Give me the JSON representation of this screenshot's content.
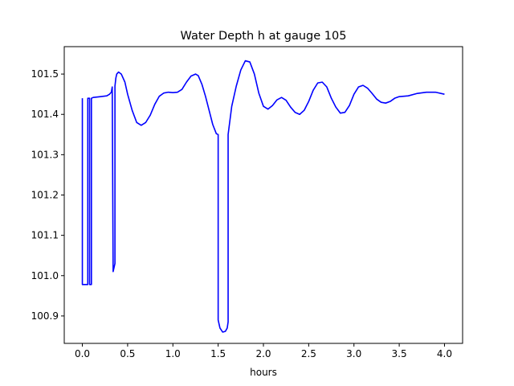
{
  "chart_data": {
    "type": "line",
    "title": "Water Depth h at gauge 105",
    "xlabel": "hours",
    "ylabel": "",
    "xlim": [
      -0.2,
      4.2
    ],
    "ylim": [
      100.832,
      101.568
    ],
    "xticks": [
      0.0,
      0.5,
      1.0,
      1.5,
      2.0,
      2.5,
      3.0,
      3.5,
      4.0
    ],
    "xtick_labels": [
      "0.0",
      "0.5",
      "1.0",
      "1.5",
      "2.0",
      "2.5",
      "3.0",
      "3.5",
      "4.0"
    ],
    "yticks": [
      100.9,
      101.0,
      101.1,
      101.2,
      101.3,
      101.4,
      101.5
    ],
    "ytick_labels": [
      "100.9",
      "101.0",
      "101.1",
      "101.2",
      "101.3",
      "101.4",
      "101.5"
    ],
    "grid": false,
    "color": "#0000ff",
    "series": [
      {
        "x": [
          0.0,
          0.0,
          0.0,
          0.06,
          0.06,
          0.06,
          0.08,
          0.08,
          0.08,
          0.1,
          0.1,
          0.1,
          0.12,
          0.2,
          0.27,
          0.3,
          0.32,
          0.33,
          0.34,
          0.34,
          0.35,
          0.36,
          0.36,
          0.37,
          0.38,
          0.4,
          0.43,
          0.47,
          0.5,
          0.55,
          0.6,
          0.65,
          0.7,
          0.75,
          0.8,
          0.85,
          0.9,
          0.95,
          1.0,
          1.05,
          1.1,
          1.15,
          1.2,
          1.25,
          1.28,
          1.32,
          1.36,
          1.4,
          1.44,
          1.48,
          1.5,
          1.5,
          1.52,
          1.55,
          1.58,
          1.6,
          1.61,
          1.61,
          1.65,
          1.7,
          1.75,
          1.8,
          1.85,
          1.9,
          1.95,
          2.0,
          2.05,
          2.1,
          2.15,
          2.2,
          2.25,
          2.3,
          2.35,
          2.4,
          2.45,
          2.5,
          2.55,
          2.6,
          2.65,
          2.7,
          2.75,
          2.8,
          2.85,
          2.9,
          2.95,
          3.0,
          3.05,
          3.1,
          3.15,
          3.2,
          3.25,
          3.3,
          3.35,
          3.4,
          3.45,
          3.5,
          3.6,
          3.7,
          3.8,
          3.9,
          4.0
        ],
        "y": [
          101.44,
          100.978,
          100.978,
          100.978,
          101.44,
          101.44,
          101.44,
          100.978,
          100.978,
          100.978,
          101.44,
          101.44,
          101.442,
          101.444,
          101.446,
          101.45,
          101.455,
          101.468,
          101.01,
          101.01,
          101.02,
          101.03,
          101.47,
          101.49,
          101.5,
          101.505,
          101.5,
          101.48,
          101.45,
          101.41,
          101.38,
          101.373,
          101.38,
          101.398,
          101.425,
          101.445,
          101.453,
          101.455,
          101.454,
          101.455,
          101.462,
          101.48,
          101.495,
          101.5,
          101.496,
          101.475,
          101.445,
          101.41,
          101.375,
          101.352,
          101.35,
          100.89,
          100.87,
          100.86,
          100.862,
          100.87,
          100.885,
          101.35,
          101.42,
          101.47,
          101.51,
          101.533,
          101.53,
          101.5,
          101.452,
          101.42,
          101.413,
          101.422,
          101.436,
          101.442,
          101.435,
          101.418,
          101.405,
          101.4,
          101.41,
          101.432,
          101.46,
          101.478,
          101.48,
          101.468,
          101.44,
          101.418,
          101.403,
          101.405,
          101.422,
          101.45,
          101.468,
          101.472,
          101.465,
          101.452,
          101.438,
          101.43,
          101.428,
          101.432,
          101.44,
          101.444,
          101.446,
          101.452,
          101.455,
          101.455,
          101.45
        ]
      }
    ]
  }
}
